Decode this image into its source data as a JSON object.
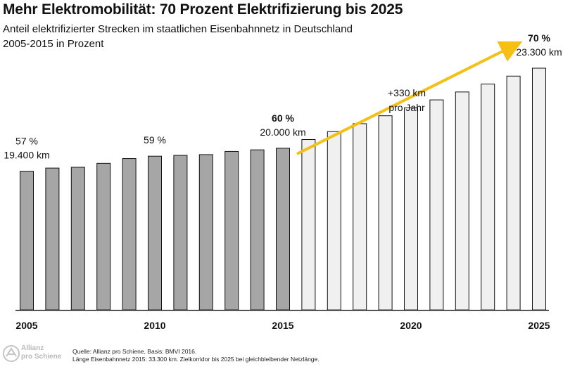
{
  "header": {
    "title": "Mehr Elektromobilität: 70 Prozent Elektrifizierung bis 2025",
    "subtitle_line1": "Anteil elektrifizierter Strecken im staatlichen Eisenbahnnetz in Deutschland",
    "subtitle_line2": "2005-2015 in Prozent"
  },
  "footer": {
    "logo_line1": "Allianz",
    "logo_line2": "pro Schiene",
    "source_line1": "Quelle: Allianz pro Schiene, Basis: BMVI 2016.",
    "source_line2": "Länge Eisenbahnnetz 2015: 33.300 km. Zielkorridor bis 2025 bei gleichbleibender Netzlänge."
  },
  "colors": {
    "actual_bar": "#a6a6a6",
    "target_bar": "#f0f0f0",
    "arrow": "#f5c013",
    "axis": "#222222"
  },
  "chart_data": {
    "type": "bar",
    "title": "Mehr Elektromobilität: 70 Prozent Elektrifizierung bis 2025",
    "x": [
      2005,
      2006,
      2007,
      2008,
      2009,
      2010,
      2011,
      2012,
      2013,
      2014,
      2015,
      2016,
      2017,
      2018,
      2019,
      2020,
      2021,
      2022,
      2023,
      2024,
      2025
    ],
    "x_tick_labels": [
      "2005",
      "2010",
      "2015",
      "2020",
      "2025"
    ],
    "x_tick_years": [
      2005,
      2010,
      2015,
      2020,
      2025
    ],
    "series": [
      {
        "values": [
          57.0,
          57.4,
          57.5,
          58.0,
          58.6,
          58.9,
          59.0,
          59.1,
          59.5,
          59.7,
          59.9,
          null,
          null,
          null,
          null,
          null,
          null,
          null,
          null,
          null,
          null
        ]
      },
      {
        "values": [
          null,
          null,
          null,
          null,
          null,
          null,
          null,
          null,
          null,
          null,
          null,
          61.0,
          62.0,
          63.0,
          64.0,
          65.0,
          66.0,
          67.0,
          68.0,
          69.0,
          70.0
        ]
      }
    ],
    "ylim": [
      39.5,
      70.0
    ],
    "y_axis_visible": false,
    "grid": false,
    "annotations": [
      {
        "year": 2005,
        "line1": "57 %",
        "line2": "19.400 km"
      },
      {
        "year": 2010,
        "line1": "59 %",
        "line2": ""
      },
      {
        "year": 2015,
        "line1": "60 %",
        "line2": "20.000 km",
        "bold_first": true
      },
      {
        "year": 2025,
        "line1": "70 %",
        "line2": "23.300 km",
        "bold_first": true
      }
    ],
    "arrow_label": {
      "line1": "+330 km",
      "line2": "pro Jahr"
    }
  }
}
